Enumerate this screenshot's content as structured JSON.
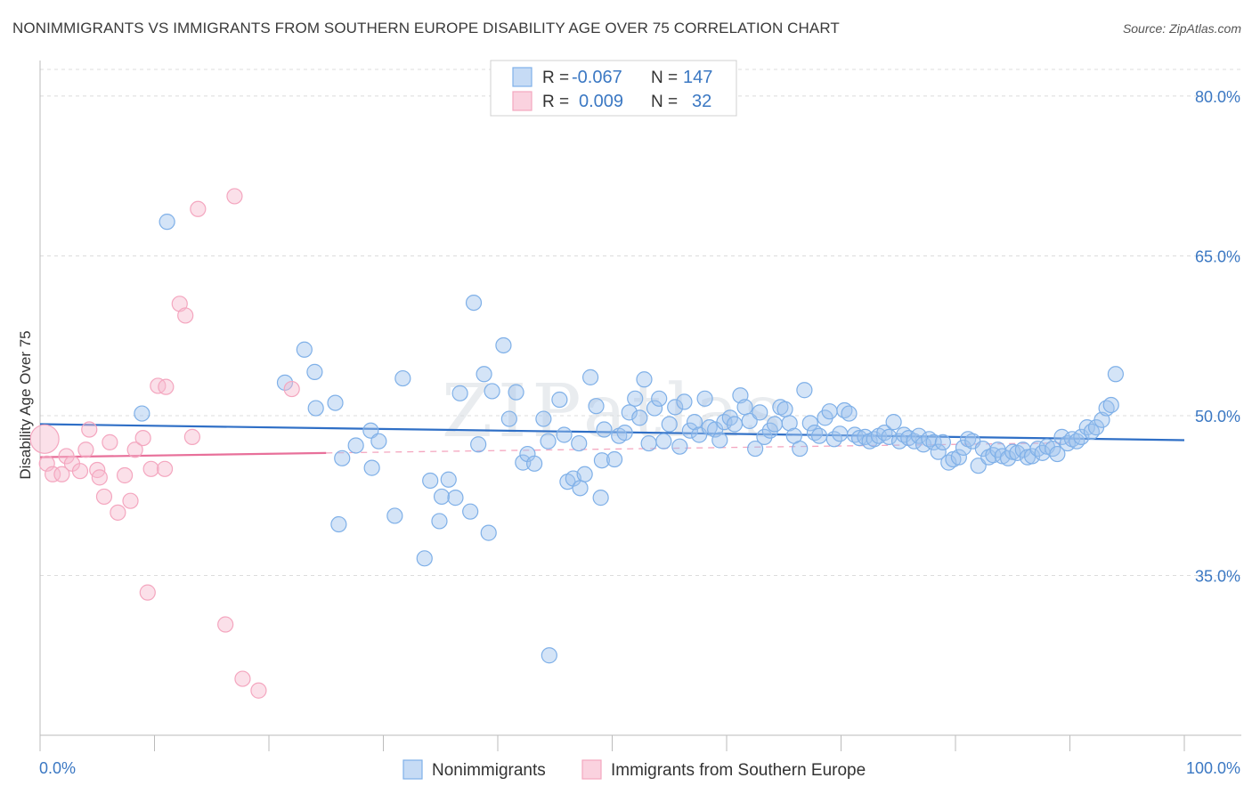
{
  "title": "NONIMMIGRANTS VS IMMIGRANTS FROM SOUTHERN EUROPE DISABILITY AGE OVER 75 CORRELATION CHART",
  "source": "Source: ZipAtlas.com",
  "watermark": "ZIPatlas",
  "legend_top": {
    "rows": [
      {
        "r_label": "R =",
        "r_value": "-0.067",
        "n_label": "N =",
        "n_value": "147"
      },
      {
        "r_label": "R =",
        "r_value": "0.009",
        "n_label": "N =",
        "n_value": "32"
      }
    ]
  },
  "legend_bottom": [
    "Nonimmigrants",
    "Immigrants from Southern Europe"
  ],
  "chart_data": {
    "type": "scatter",
    "title": "NONIMMIGRANTS VS IMMIGRANTS FROM SOUTHERN EUROPE DISABILITY AGE OVER 75 CORRELATION CHART",
    "xlabel": "",
    "ylabel": "Disability Age Over 75",
    "xlim": [
      0,
      100
    ],
    "ylim": [
      20,
      82.5
    ],
    "x_tick_labels": [
      "0.0%",
      "100.0%"
    ],
    "y_ticks": [
      35,
      50,
      65,
      80
    ],
    "y_tick_labels": [
      "35.0%",
      "50.0%",
      "65.0%",
      "80.0%"
    ],
    "grid": true,
    "colors": {
      "nonimmigrants": "#7fb0e8",
      "southern_europe": "#f4a6bf",
      "blue_line": "#2f6fc6",
      "pink_line": "#e8709a",
      "tick_text": "#3b78c3"
    },
    "series": [
      {
        "name": "Nonimmigrants",
        "trend": {
          "x": [
            0,
            100
          ],
          "y": [
            49.2,
            47.7
          ]
        },
        "points": [
          [
            11.1,
            68.2
          ],
          [
            8.9,
            50.2
          ],
          [
            21.4,
            53.1
          ],
          [
            24.0,
            54.1
          ],
          [
            23.1,
            56.2
          ],
          [
            24.1,
            50.7
          ],
          [
            25.8,
            51.2
          ],
          [
            26.4,
            46.0
          ],
          [
            27.6,
            47.2
          ],
          [
            28.9,
            48.6
          ],
          [
            29.6,
            47.6
          ],
          [
            29.0,
            45.1
          ],
          [
            26.1,
            39.8
          ],
          [
            31.0,
            40.6
          ],
          [
            31.7,
            53.5
          ],
          [
            33.6,
            36.6
          ],
          [
            34.1,
            43.9
          ],
          [
            34.9,
            40.1
          ],
          [
            35.1,
            42.4
          ],
          [
            35.7,
            44.0
          ],
          [
            36.3,
            42.3
          ],
          [
            36.7,
            52.1
          ],
          [
            37.6,
            41.0
          ],
          [
            37.9,
            60.6
          ],
          [
            38.3,
            47.3
          ],
          [
            38.8,
            53.9
          ],
          [
            39.2,
            39.0
          ],
          [
            39.5,
            52.3
          ],
          [
            40.5,
            56.6
          ],
          [
            41.0,
            49.7
          ],
          [
            41.6,
            52.2
          ],
          [
            42.2,
            45.6
          ],
          [
            42.6,
            46.4
          ],
          [
            43.2,
            45.5
          ],
          [
            44.0,
            49.7
          ],
          [
            44.4,
            47.6
          ],
          [
            45.4,
            51.5
          ],
          [
            45.8,
            48.2
          ],
          [
            46.1,
            43.8
          ],
          [
            46.6,
            44.1
          ],
          [
            47.1,
            47.4
          ],
          [
            47.6,
            44.5
          ],
          [
            48.1,
            53.6
          ],
          [
            48.6,
            50.9
          ],
          [
            49.1,
            45.8
          ],
          [
            49.3,
            48.7
          ],
          [
            50.2,
            45.9
          ],
          [
            50.6,
            48.1
          ],
          [
            51.1,
            48.4
          ],
          [
            51.5,
            50.3
          ],
          [
            52.0,
            51.6
          ],
          [
            52.4,
            49.8
          ],
          [
            52.8,
            53.4
          ],
          [
            53.2,
            47.4
          ],
          [
            53.7,
            50.7
          ],
          [
            54.1,
            51.6
          ],
          [
            54.5,
            47.6
          ],
          [
            55.0,
            49.2
          ],
          [
            55.5,
            50.8
          ],
          [
            55.9,
            47.1
          ],
          [
            56.3,
            51.3
          ],
          [
            56.8,
            48.6
          ],
          [
            57.2,
            49.4
          ],
          [
            57.6,
            48.2
          ],
          [
            58.1,
            51.6
          ],
          [
            58.5,
            48.9
          ],
          [
            59.0,
            48.7
          ],
          [
            59.4,
            47.7
          ],
          [
            59.8,
            49.4
          ],
          [
            60.3,
            49.8
          ],
          [
            60.7,
            49.2
          ],
          [
            61.2,
            51.9
          ],
          [
            61.6,
            50.8
          ],
          [
            62.0,
            49.5
          ],
          [
            62.5,
            46.9
          ],
          [
            62.9,
            50.3
          ],
          [
            63.3,
            48.0
          ],
          [
            63.8,
            48.6
          ],
          [
            64.2,
            49.2
          ],
          [
            64.7,
            50.8
          ],
          [
            65.1,
            50.6
          ],
          [
            65.5,
            49.3
          ],
          [
            65.9,
            48.1
          ],
          [
            66.4,
            46.9
          ],
          [
            66.8,
            52.4
          ],
          [
            67.3,
            49.3
          ],
          [
            67.7,
            48.4
          ],
          [
            68.1,
            48.1
          ],
          [
            68.6,
            49.8
          ],
          [
            69.0,
            50.4
          ],
          [
            69.4,
            47.8
          ],
          [
            69.9,
            48.3
          ],
          [
            70.3,
            50.5
          ],
          [
            70.7,
            50.2
          ],
          [
            71.2,
            48.2
          ],
          [
            71.6,
            47.9
          ],
          [
            72.1,
            48.0
          ],
          [
            72.5,
            47.6
          ],
          [
            72.9,
            47.8
          ],
          [
            73.3,
            48.1
          ],
          [
            73.8,
            48.4
          ],
          [
            74.2,
            48.0
          ],
          [
            74.6,
            49.4
          ],
          [
            75.1,
            47.6
          ],
          [
            75.5,
            48.2
          ],
          [
            75.9,
            47.9
          ],
          [
            76.4,
            47.6
          ],
          [
            76.8,
            48.1
          ],
          [
            77.2,
            47.3
          ],
          [
            77.7,
            47.8
          ],
          [
            78.1,
            47.5
          ],
          [
            78.5,
            46.6
          ],
          [
            78.9,
            47.5
          ],
          [
            79.4,
            45.6
          ],
          [
            79.8,
            45.9
          ],
          [
            80.3,
            46.1
          ],
          [
            80.7,
            47.0
          ],
          [
            81.1,
            47.8
          ],
          [
            81.5,
            47.6
          ],
          [
            82.0,
            45.3
          ],
          [
            82.4,
            46.9
          ],
          [
            82.9,
            46.1
          ],
          [
            83.3,
            46.3
          ],
          [
            83.7,
            46.8
          ],
          [
            84.1,
            46.2
          ],
          [
            84.6,
            46.0
          ],
          [
            85.0,
            46.6
          ],
          [
            85.4,
            46.5
          ],
          [
            85.9,
            46.8
          ],
          [
            86.3,
            46.1
          ],
          [
            86.7,
            46.2
          ],
          [
            87.2,
            46.9
          ],
          [
            87.6,
            46.5
          ],
          [
            88.0,
            47.1
          ],
          [
            88.5,
            46.9
          ],
          [
            88.9,
            46.4
          ],
          [
            89.3,
            48.0
          ],
          [
            89.8,
            47.4
          ],
          [
            90.2,
            47.8
          ],
          [
            90.6,
            47.6
          ],
          [
            91.0,
            48.0
          ],
          [
            91.5,
            48.9
          ],
          [
            91.9,
            48.5
          ],
          [
            92.3,
            48.9
          ],
          [
            92.8,
            49.6
          ],
          [
            93.2,
            50.7
          ],
          [
            93.6,
            51.0
          ],
          [
            94.0,
            53.9
          ],
          [
            49.0,
            42.3
          ],
          [
            47.2,
            43.2
          ],
          [
            44.5,
            27.5
          ]
        ]
      },
      {
        "name": "Immigrants from Southern Europe",
        "trend": {
          "x": [
            0,
            25
          ],
          "y": [
            46.1,
            46.5
          ]
        },
        "points": [
          [
            0.4,
            47.8
          ],
          [
            0.6,
            45.5
          ],
          [
            1.1,
            44.5
          ],
          [
            1.9,
            44.5
          ],
          [
            2.3,
            46.2
          ],
          [
            2.8,
            45.5
          ],
          [
            3.5,
            44.8
          ],
          [
            4.0,
            46.8
          ],
          [
            4.3,
            48.7
          ],
          [
            5.0,
            44.9
          ],
          [
            5.2,
            44.2
          ],
          [
            5.6,
            42.4
          ],
          [
            6.1,
            47.5
          ],
          [
            6.8,
            40.9
          ],
          [
            7.4,
            44.4
          ],
          [
            7.9,
            42.0
          ],
          [
            8.3,
            46.8
          ],
          [
            9.0,
            47.9
          ],
          [
            9.4,
            33.4
          ],
          [
            9.7,
            45.0
          ],
          [
            10.3,
            52.8
          ],
          [
            10.9,
            45.0
          ],
          [
            11.0,
            52.7
          ],
          [
            12.2,
            60.5
          ],
          [
            12.7,
            59.4
          ],
          [
            13.3,
            48.0
          ],
          [
            13.8,
            69.4
          ],
          [
            16.2,
            30.4
          ],
          [
            17.0,
            70.6
          ],
          [
            17.7,
            25.3
          ],
          [
            19.1,
            24.2
          ],
          [
            22.0,
            52.5
          ]
        ]
      }
    ]
  }
}
